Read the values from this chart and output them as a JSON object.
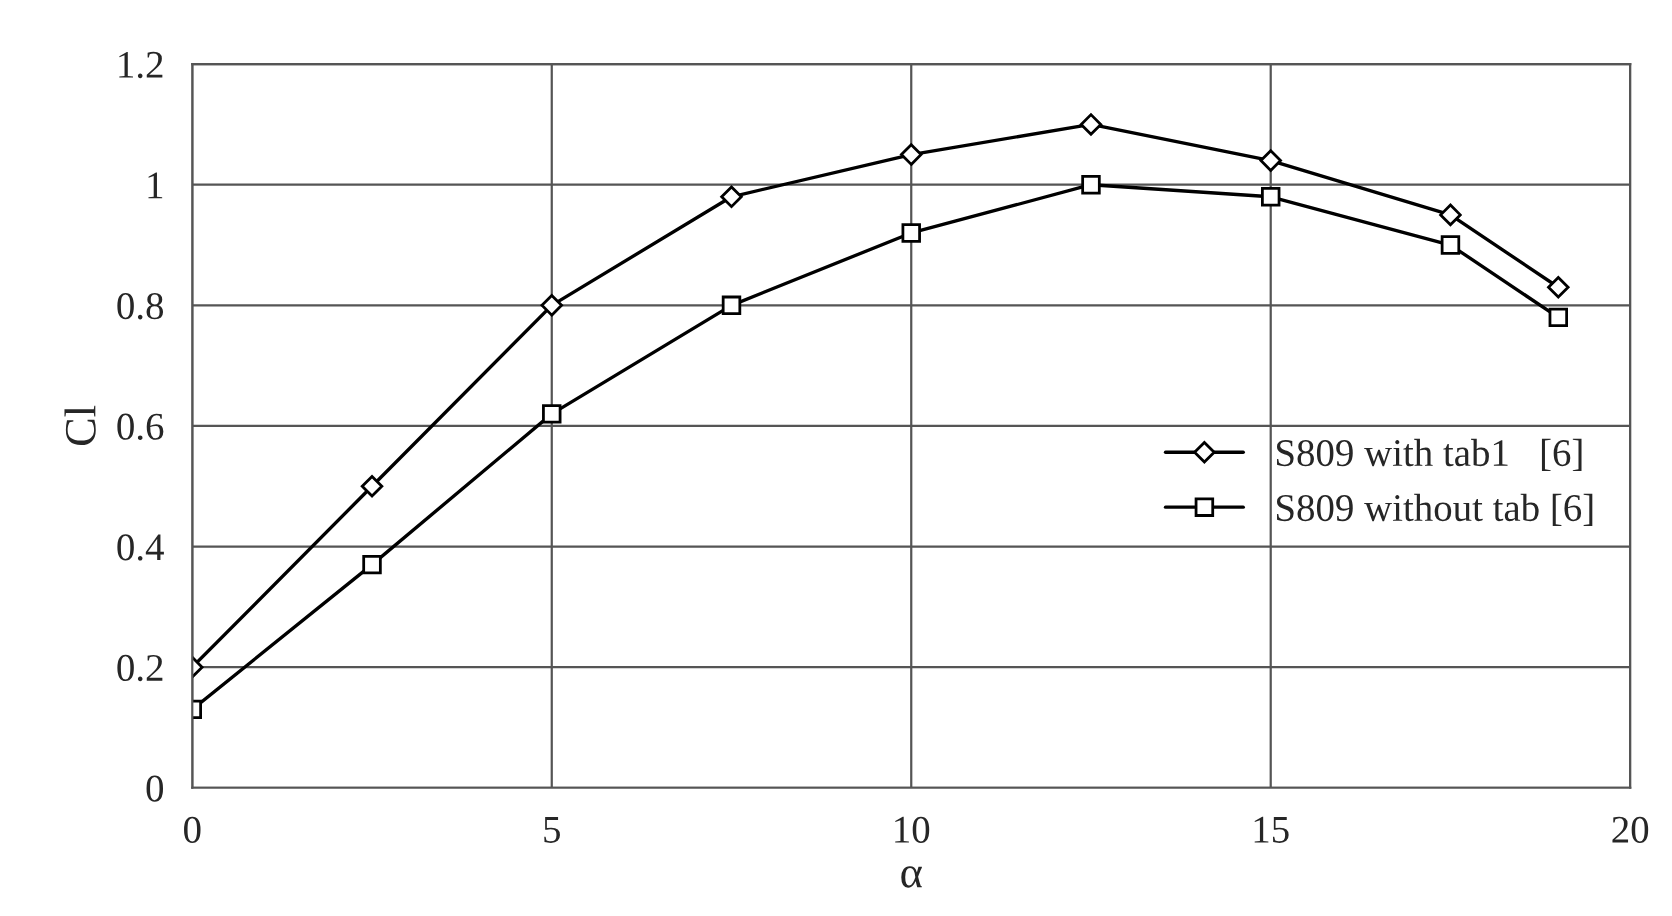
{
  "chart_data": {
    "type": "line",
    "xlabel": "α",
    "ylabel": "Cl",
    "xlim": [
      0,
      20
    ],
    "xticks": [
      0,
      5,
      10,
      15,
      20
    ],
    "ylim": [
      0,
      1.2
    ],
    "yticks": [
      0,
      0.2,
      0.4,
      0.6,
      0.8,
      1,
      1.2
    ],
    "grid": true,
    "legend": "right",
    "line_style": "solid",
    "series": [
      {
        "name": "S809 with tab1   [6]",
        "color": "#000000",
        "marker": "diamond",
        "x": [
          0,
          2.5,
          5,
          7.5,
          10,
          12.5,
          15,
          17.5,
          19
        ],
        "values": [
          0.2,
          0.5,
          0.8,
          0.98,
          1.05,
          1.1,
          1.04,
          0.95,
          0.83
        ]
      },
      {
        "name": "S809 without tab [6]",
        "color": "#000000",
        "marker": "square",
        "x": [
          0,
          2.5,
          5,
          7.5,
          10,
          12.5,
          15,
          17.5,
          19
        ],
        "values": [
          0.13,
          0.37,
          0.62,
          0.8,
          0.92,
          1.0,
          0.98,
          0.9,
          0.78
        ]
      }
    ]
  }
}
